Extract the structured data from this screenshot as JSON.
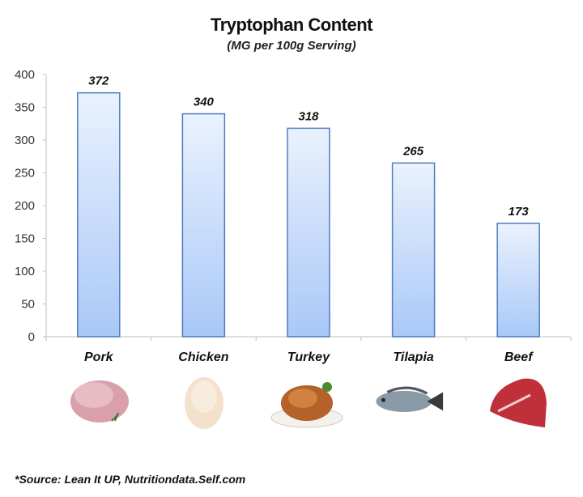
{
  "chart_data": {
    "type": "bar",
    "title": "Tryptophan Content",
    "subtitle": "(MG per 100g Serving)",
    "categories": [
      "Pork",
      "Chicken",
      "Turkey",
      "Tilapia",
      "Beef"
    ],
    "values": [
      372,
      340,
      318,
      265,
      173
    ],
    "data_labels": [
      "372",
      "340",
      "318",
      "265",
      "173"
    ],
    "ylim": [
      0,
      400
    ],
    "yticks": [
      0,
      50,
      100,
      150,
      200,
      250,
      300,
      350,
      400
    ],
    "grid": false,
    "legend": "none",
    "colors": {
      "bar_top": "#eaf2fe",
      "bar_bottom": "#a9c8f7",
      "bar_border": "#4f7bbf",
      "axis": "#bfbfbf"
    }
  },
  "images": [
    "pork-image",
    "chicken-image",
    "turkey-image",
    "tilapia-fish-image",
    "beef-image"
  ],
  "footer": {
    "source": "*Source: Lean It UP, Nutritiondata.Self.com"
  }
}
